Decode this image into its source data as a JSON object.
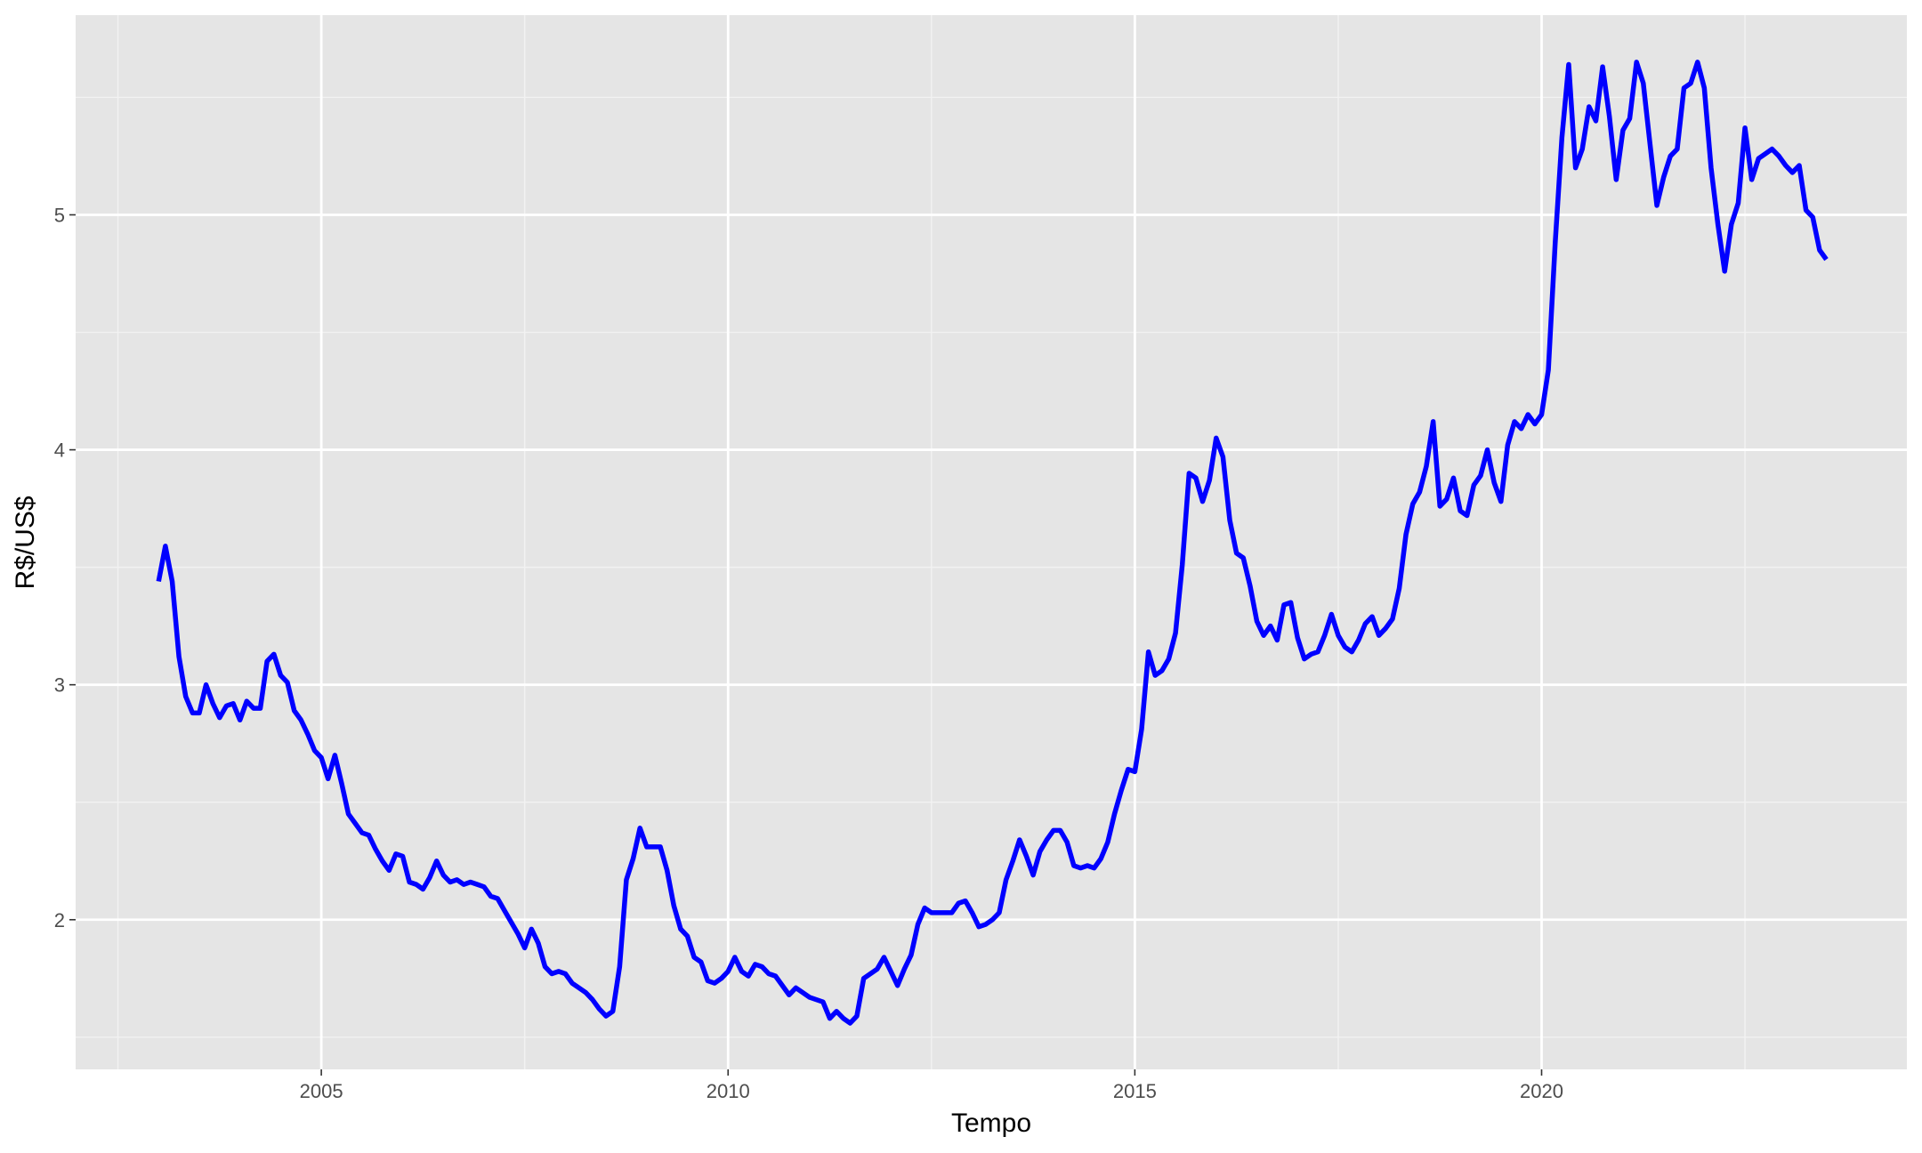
{
  "chart_data": {
    "type": "line",
    "x_label": "Tempo",
    "y_label": "R$/US$",
    "x": [
      2003,
      2003.083,
      2003.167,
      2003.25,
      2003.333,
      2003.417,
      2003.5,
      2003.583,
      2003.667,
      2003.75,
      2003.833,
      2003.917,
      2004,
      2004.083,
      2004.167,
      2004.25,
      2004.333,
      2004.417,
      2004.5,
      2004.583,
      2004.667,
      2004.75,
      2004.833,
      2004.917,
      2005,
      2005.083,
      2005.167,
      2005.25,
      2005.333,
      2005.417,
      2005.5,
      2005.583,
      2005.667,
      2005.75,
      2005.833,
      2005.917,
      2006,
      2006.083,
      2006.167,
      2006.25,
      2006.333,
      2006.417,
      2006.5,
      2006.583,
      2006.667,
      2006.75,
      2006.833,
      2006.917,
      2007,
      2007.083,
      2007.167,
      2007.25,
      2007.333,
      2007.417,
      2007.5,
      2007.583,
      2007.667,
      2007.75,
      2007.833,
      2007.917,
      2008,
      2008.083,
      2008.167,
      2008.25,
      2008.333,
      2008.417,
      2008.5,
      2008.583,
      2008.667,
      2008.75,
      2008.833,
      2008.917,
      2009,
      2009.083,
      2009.167,
      2009.25,
      2009.333,
      2009.417,
      2009.5,
      2009.583,
      2009.667,
      2009.75,
      2009.833,
      2009.917,
      2010,
      2010.083,
      2010.167,
      2010.25,
      2010.333,
      2010.417,
      2010.5,
      2010.583,
      2010.667,
      2010.75,
      2010.833,
      2010.917,
      2011,
      2011.083,
      2011.167,
      2011.25,
      2011.333,
      2011.417,
      2011.5,
      2011.583,
      2011.667,
      2011.75,
      2011.833,
      2011.917,
      2012,
      2012.083,
      2012.167,
      2012.25,
      2012.333,
      2012.417,
      2012.5,
      2012.583,
      2012.667,
      2012.75,
      2012.833,
      2012.917,
      2013,
      2013.083,
      2013.167,
      2013.25,
      2013.333,
      2013.417,
      2013.5,
      2013.583,
      2013.667,
      2013.75,
      2013.833,
      2013.917,
      2014,
      2014.083,
      2014.167,
      2014.25,
      2014.333,
      2014.417,
      2014.5,
      2014.583,
      2014.667,
      2014.75,
      2014.833,
      2014.917,
      2015,
      2015.083,
      2015.167,
      2015.25,
      2015.333,
      2015.417,
      2015.5,
      2015.583,
      2015.667,
      2015.75,
      2015.833,
      2015.917,
      2016,
      2016.083,
      2016.167,
      2016.25,
      2016.333,
      2016.417,
      2016.5,
      2016.583,
      2016.667,
      2016.75,
      2016.833,
      2016.917,
      2017,
      2017.083,
      2017.167,
      2017.25,
      2017.333,
      2017.417,
      2017.5,
      2017.583,
      2017.667,
      2017.75,
      2017.833,
      2017.917,
      2018,
      2018.083,
      2018.167,
      2018.25,
      2018.333,
      2018.417,
      2018.5,
      2018.583,
      2018.667,
      2018.75,
      2018.833,
      2018.917,
      2019,
      2019.083,
      2019.167,
      2019.25,
      2019.333,
      2019.417,
      2019.5,
      2019.583,
      2019.667,
      2019.75,
      2019.833,
      2019.917,
      2020,
      2020.083,
      2020.167,
      2020.25,
      2020.333,
      2020.417,
      2020.5,
      2020.583,
      2020.667,
      2020.75,
      2020.833,
      2020.917,
      2021,
      2021.083,
      2021.167,
      2021.25,
      2021.333,
      2021.417,
      2021.5,
      2021.583,
      2021.667,
      2021.75,
      2021.833,
      2021.917,
      2022,
      2022.083,
      2022.167,
      2022.25,
      2022.333,
      2022.417,
      2022.5,
      2022.583,
      2022.667,
      2022.75,
      2022.833,
      2022.917,
      2023,
      2023.083,
      2023.167,
      2023.25,
      2023.333,
      2023.417,
      2023.5
    ],
    "series": [
      {
        "color": "#0000ff",
        "values": [
          3.44,
          3.59,
          3.44,
          3.12,
          2.95,
          2.88,
          2.88,
          3.0,
          2.92,
          2.86,
          2.91,
          2.92,
          2.85,
          2.93,
          2.9,
          2.9,
          3.1,
          3.13,
          3.04,
          3.01,
          2.89,
          2.85,
          2.79,
          2.72,
          2.69,
          2.6,
          2.7,
          2.58,
          2.45,
          2.41,
          2.37,
          2.36,
          2.3,
          2.25,
          2.21,
          2.28,
          2.27,
          2.16,
          2.15,
          2.13,
          2.18,
          2.25,
          2.19,
          2.16,
          2.17,
          2.15,
          2.16,
          2.15,
          2.14,
          2.1,
          2.09,
          2.04,
          1.99,
          1.94,
          1.88,
          1.96,
          1.9,
          1.8,
          1.77,
          1.78,
          1.77,
          1.73,
          1.71,
          1.69,
          1.66,
          1.62,
          1.59,
          1.61,
          1.8,
          2.17,
          2.26,
          2.39,
          2.31,
          2.31,
          2.31,
          2.21,
          2.06,
          1.96,
          1.93,
          1.84,
          1.82,
          1.74,
          1.73,
          1.75,
          1.78,
          1.84,
          1.78,
          1.76,
          1.81,
          1.8,
          1.77,
          1.76,
          1.72,
          1.68,
          1.71,
          1.69,
          1.67,
          1.66,
          1.65,
          1.58,
          1.61,
          1.58,
          1.56,
          1.59,
          1.75,
          1.77,
          1.79,
          1.84,
          1.78,
          1.72,
          1.79,
          1.85,
          1.98,
          2.05,
          2.03,
          2.03,
          2.03,
          2.03,
          2.07,
          2.08,
          2.03,
          1.97,
          1.98,
          2.0,
          2.03,
          2.17,
          2.25,
          2.34,
          2.27,
          2.19,
          2.29,
          2.34,
          2.38,
          2.38,
          2.33,
          2.23,
          2.22,
          2.23,
          2.22,
          2.26,
          2.33,
          2.45,
          2.55,
          2.64,
          2.63,
          2.81,
          3.14,
          3.04,
          3.06,
          3.11,
          3.22,
          3.51,
          3.9,
          3.88,
          3.78,
          3.87,
          4.05,
          3.97,
          3.7,
          3.56,
          3.54,
          3.42,
          3.27,
          3.21,
          3.25,
          3.19,
          3.34,
          3.35,
          3.2,
          3.11,
          3.13,
          3.14,
          3.21,
          3.3,
          3.21,
          3.16,
          3.14,
          3.19,
          3.26,
          3.29,
          3.21,
          3.24,
          3.28,
          3.41,
          3.64,
          3.77,
          3.82,
          3.93,
          4.12,
          3.76,
          3.79,
          3.88,
          3.74,
          3.72,
          3.85,
          3.89,
          4.0,
          3.86,
          3.78,
          4.02,
          4.12,
          4.09,
          4.15,
          4.11,
          4.15,
          4.34,
          4.88,
          5.33,
          5.64,
          5.2,
          5.28,
          5.46,
          5.4,
          5.63,
          5.42,
          5.15,
          5.36,
          5.41,
          5.65,
          5.56,
          5.3,
          5.04,
          5.16,
          5.25,
          5.28,
          5.54,
          5.56,
          5.65,
          5.54,
          5.2,
          4.96,
          4.76,
          4.96,
          5.05,
          5.37,
          5.15,
          5.24,
          5.26,
          5.28,
          5.25,
          5.21,
          5.18,
          5.21,
          5.02,
          4.99,
          4.85,
          4.81
        ]
      }
    ],
    "xlim": [
      2001.98,
      2024.49
    ],
    "xticks": [
      2005,
      2010,
      2015,
      2020
    ],
    "ylim": [
      1.363,
      5.85
    ],
    "yticks": [
      2,
      3,
      4,
      5
    ],
    "grid": true
  }
}
